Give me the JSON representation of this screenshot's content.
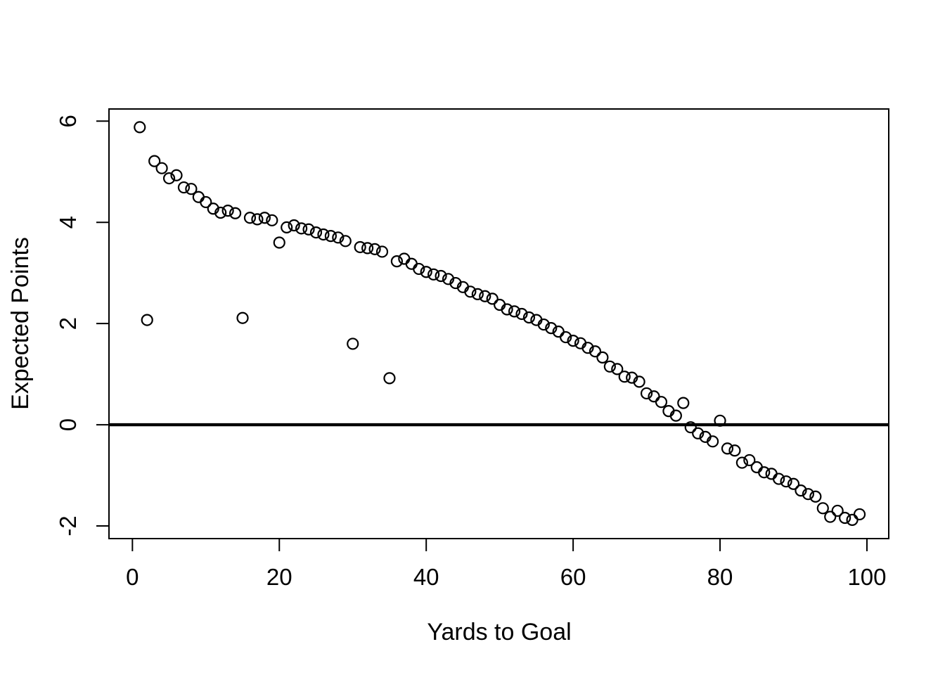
{
  "figure": {
    "background": "#ffffff",
    "foreground": "#000000",
    "marker_color": "#000000",
    "marker_fill": "none"
  },
  "chart_data": {
    "type": "scatter",
    "title": "",
    "xlabel": "Yards to Goal",
    "ylabel": "Expected Points",
    "x_ticks": [
      0,
      20,
      40,
      60,
      80,
      100
    ],
    "y_ticks": [
      -2,
      0,
      2,
      4,
      6
    ],
    "xlim": [
      -3.19,
      102.97
    ],
    "ylim": [
      -2.25,
      6.24
    ],
    "grid": false,
    "legend": "none",
    "marker": "open-circle",
    "reference_line_y": 0,
    "points": [
      [
        1,
        5.88
      ],
      [
        2,
        2.07
      ],
      [
        3,
        5.21
      ],
      [
        4,
        5.07
      ],
      [
        5,
        4.87
      ],
      [
        6,
        4.93
      ],
      [
        7,
        4.69
      ],
      [
        8,
        4.66
      ],
      [
        9,
        4.5
      ],
      [
        10,
        4.4
      ],
      [
        11,
        4.27
      ],
      [
        12,
        4.19
      ],
      [
        13,
        4.23
      ],
      [
        14,
        4.18
      ],
      [
        15,
        2.11
      ],
      [
        16,
        4.09
      ],
      [
        17,
        4.06
      ],
      [
        18,
        4.09
      ],
      [
        19,
        4.04
      ],
      [
        20,
        3.6
      ],
      [
        21,
        3.9
      ],
      [
        22,
        3.94
      ],
      [
        23,
        3.88
      ],
      [
        24,
        3.86
      ],
      [
        25,
        3.8
      ],
      [
        26,
        3.76
      ],
      [
        27,
        3.73
      ],
      [
        28,
        3.7
      ],
      [
        29,
        3.63
      ],
      [
        30,
        1.6
      ],
      [
        31,
        3.51
      ],
      [
        32,
        3.49
      ],
      [
        33,
        3.47
      ],
      [
        34,
        3.42
      ],
      [
        35,
        0.92
      ],
      [
        36,
        3.23
      ],
      [
        37,
        3.28
      ],
      [
        38,
        3.18
      ],
      [
        39,
        3.08
      ],
      [
        40,
        3.02
      ],
      [
        41,
        2.97
      ],
      [
        42,
        2.94
      ],
      [
        43,
        2.88
      ],
      [
        44,
        2.8
      ],
      [
        45,
        2.72
      ],
      [
        46,
        2.63
      ],
      [
        47,
        2.58
      ],
      [
        48,
        2.54
      ],
      [
        49,
        2.49
      ],
      [
        50,
        2.37
      ],
      [
        51,
        2.28
      ],
      [
        52,
        2.24
      ],
      [
        53,
        2.19
      ],
      [
        54,
        2.12
      ],
      [
        55,
        2.07
      ],
      [
        56,
        1.98
      ],
      [
        57,
        1.91
      ],
      [
        58,
        1.84
      ],
      [
        59,
        1.73
      ],
      [
        60,
        1.66
      ],
      [
        61,
        1.61
      ],
      [
        62,
        1.52
      ],
      [
        63,
        1.45
      ],
      [
        64,
        1.33
      ],
      [
        65,
        1.15
      ],
      [
        66,
        1.1
      ],
      [
        67,
        0.95
      ],
      [
        68,
        0.93
      ],
      [
        69,
        0.85
      ],
      [
        70,
        0.62
      ],
      [
        71,
        0.56
      ],
      [
        72,
        0.45
      ],
      [
        73,
        0.27
      ],
      [
        74,
        0.18
      ],
      [
        75,
        0.43
      ],
      [
        76,
        -0.05
      ],
      [
        77,
        -0.17
      ],
      [
        78,
        -0.24
      ],
      [
        79,
        -0.33
      ],
      [
        80,
        0.08
      ],
      [
        81,
        -0.47
      ],
      [
        82,
        -0.51
      ],
      [
        83,
        -0.75
      ],
      [
        84,
        -0.7
      ],
      [
        85,
        -0.84
      ],
      [
        86,
        -0.94
      ],
      [
        87,
        -0.97
      ],
      [
        88,
        -1.07
      ],
      [
        89,
        -1.12
      ],
      [
        90,
        -1.17
      ],
      [
        91,
        -1.3
      ],
      [
        92,
        -1.37
      ],
      [
        93,
        -1.42
      ],
      [
        94,
        -1.65
      ],
      [
        95,
        -1.82
      ],
      [
        96,
        -1.7
      ],
      [
        97,
        -1.84
      ],
      [
        98,
        -1.88
      ],
      [
        99,
        -1.77
      ]
    ]
  }
}
